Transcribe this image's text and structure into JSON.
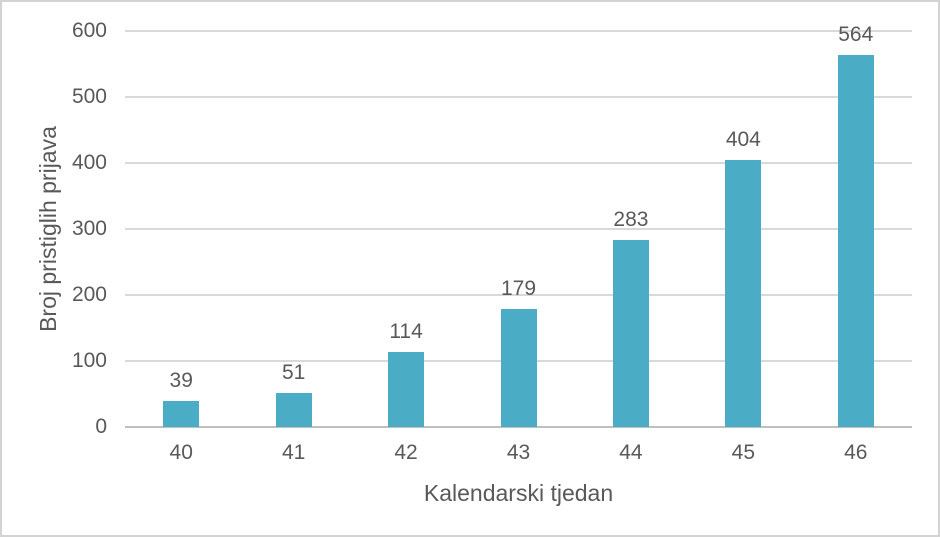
{
  "chart_data": {
    "type": "bar",
    "title": "",
    "xlabel": "Kalendarski tjedan",
    "ylabel": "Broj pristiglih prijava",
    "categories": [
      "40",
      "41",
      "42",
      "43",
      "44",
      "45",
      "46"
    ],
    "values": [
      39,
      51,
      114,
      179,
      283,
      404,
      564
    ],
    "data_labels": [
      "39",
      "51",
      "114",
      "179",
      "283",
      "404",
      "564"
    ],
    "y_ticks": [
      0,
      100,
      200,
      300,
      400,
      500,
      600
    ],
    "ylim": [
      0,
      600
    ],
    "grid": true,
    "legend_position": "none",
    "colors": {
      "bar": "#4AACC5",
      "gridline": "#D9D9D9",
      "axis_line": "#BFBFBF",
      "text": "#595959",
      "background": "#FFFFFF",
      "frame_border": "#D3D3D3"
    }
  }
}
